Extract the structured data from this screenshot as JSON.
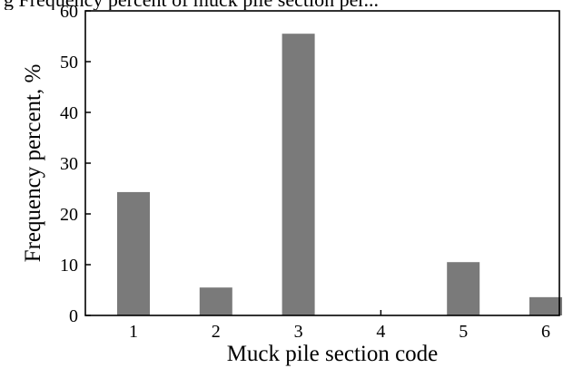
{
  "chart_data": {
    "type": "bar",
    "title_fragment": "g Frequency percent of muck pile section per...",
    "xlabel": "Muck pile section code",
    "ylabel": "Frequency percent, %",
    "categories": [
      "1",
      "2",
      "3",
      "4",
      "5",
      "6"
    ],
    "values": [
      24.3,
      5.5,
      55.5,
      0,
      10.5,
      3.6
    ],
    "ylim": [
      0,
      60
    ],
    "yticks": [
      0,
      10,
      20,
      30,
      40,
      50,
      60
    ],
    "bar_color": "#7a7a7a",
    "grid": false,
    "legend": "none"
  }
}
